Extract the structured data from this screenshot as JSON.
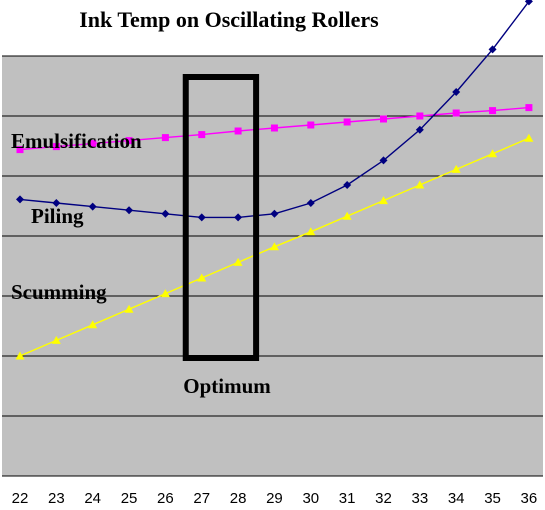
{
  "chart_data": {
    "type": "line",
    "title": "Ink Temp on Oscillating Rollers",
    "xlabel": "",
    "ylabel": "",
    "grid": true,
    "legend": "none",
    "x": [
      22,
      23,
      24,
      25,
      26,
      27,
      28,
      29,
      30,
      31,
      32,
      33,
      34,
      35,
      36
    ],
    "ylim": [
      0,
      7
    ],
    "yticks_visible": false,
    "series": [
      {
        "name": "Emulsification",
        "color": "#ff00ff",
        "marker": "square",
        "values": [
          5.44,
          5.49,
          5.54,
          5.59,
          5.64,
          5.69,
          5.75,
          5.8,
          5.85,
          5.9,
          5.95,
          6.0,
          6.05,
          6.09,
          6.14
        ]
      },
      {
        "name": "Piling",
        "color": "#000080",
        "marker": "diamond",
        "values": [
          4.61,
          4.55,
          4.49,
          4.43,
          4.37,
          4.31,
          4.31,
          4.37,
          4.55,
          4.85,
          5.26,
          5.77,
          6.4,
          7.11,
          7.91
        ]
      },
      {
        "name": "Scumming",
        "color": "#ffff00",
        "marker": "triangle",
        "values": [
          2.0,
          2.26,
          2.52,
          2.78,
          3.04,
          3.3,
          3.56,
          3.82,
          4.07,
          4.33,
          4.59,
          4.85,
          5.11,
          5.37,
          5.63
        ]
      }
    ],
    "annotations": {
      "emulsification_label": "Emulsification",
      "piling_label": "Piling",
      "scumming_label": "Scumming",
      "optimum_label": "Optimum",
      "optimum_range": [
        27,
        28
      ]
    },
    "colors": {
      "plot_background": "#c0c0c0",
      "grid": "#000000",
      "optimum_box": "#000000"
    }
  }
}
